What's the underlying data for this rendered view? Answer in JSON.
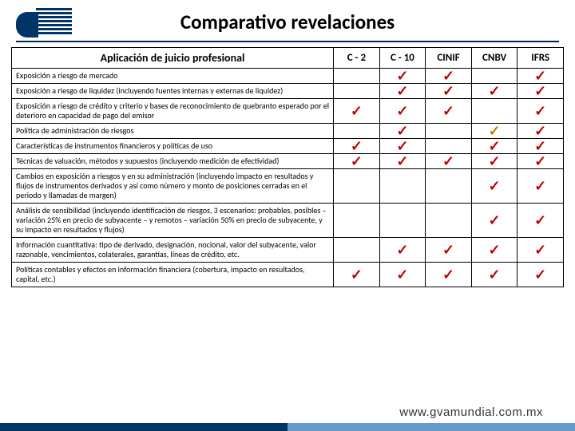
{
  "title": "Comparativo revelaciones",
  "footer_url": "www.gvamundial.com.mx",
  "header": {
    "lead": "Aplicación de juicio profesional",
    "cols": [
      "C - 2",
      "C - 10",
      "CINIF",
      "CNBV",
      "IFRS"
    ]
  },
  "check_colors": {
    "red": "#c00000",
    "brown": "#bf7f00"
  },
  "rows": [
    {
      "label": "Exposición a riesgo de mercado",
      "marks": [
        "",
        "red",
        "red",
        "",
        "red"
      ]
    },
    {
      "label": "Exposición a riesgo de liquidez (incluyendo fuentes internas y externas de liquidez)",
      "marks": [
        "",
        "red",
        "red",
        "red",
        "red"
      ]
    },
    {
      "label": "Exposición a riesgo de crédito y criterio y bases de reconocimiento de quebranto esperado por el deterioro en capacidad de pago del emisor",
      "marks": [
        "red",
        "red",
        "red",
        "",
        "red"
      ]
    },
    {
      "label": "Política de administración de riesgos",
      "marks": [
        "",
        "red",
        "",
        "brown",
        "red"
      ]
    },
    {
      "label": "Características de instrumentos financieros y políticas de uso",
      "marks": [
        "red",
        "red",
        "",
        "red",
        "red"
      ]
    },
    {
      "label": "Técnicas de valuación, métodos y supuestos (incluyendo medición de efectividad)",
      "marks": [
        "red",
        "red",
        "red",
        "red",
        "red"
      ]
    },
    {
      "label": "Cambios en exposición a riesgos y en su administración (incluyendo impacto en resultados y flujos de instrumentos derivados y así como número y monto de posiciones cerradas en el periodo y llamadas de margen)",
      "marks": [
        "",
        "",
        "",
        "red",
        "red"
      ]
    },
    {
      "label": "Análisis de sensibilidad (incluyendo identificación de riesgos, 3 escenarios: probables, posibles – variación 25% en precio de subyacente – y remotos – variación 50% en precio de subyacente, y su impacto en resultados y flujos)",
      "marks": [
        "",
        "",
        "",
        "red",
        "red"
      ]
    },
    {
      "label": "Información cuantitativa: tipo de derivado, designación, nocional, valor del subyacente, valor razonable, vencimientos, colaterales, garantías, líneas de crédito, etc.",
      "marks": [
        "",
        "red",
        "red",
        "red",
        "red"
      ]
    },
    {
      "label": "Políticas contables y efectos en información financiera (cobertura, impacto en resultados, capital, etc.)",
      "marks": [
        "red",
        "red",
        "red",
        "red",
        "red"
      ]
    }
  ]
}
